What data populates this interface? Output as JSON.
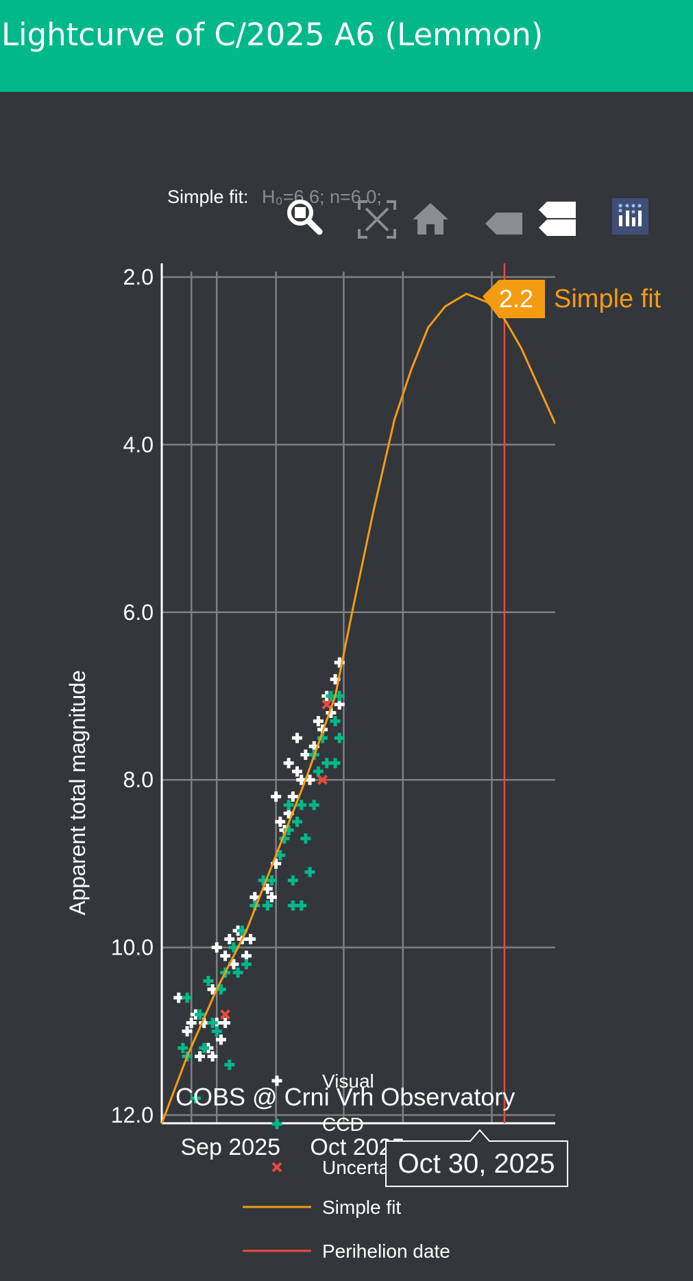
{
  "page": {
    "title": "Lightcurve of C/2025 A6 (Lemmon)"
  },
  "modebar": {
    "fit_label": "Simple fit:",
    "fit_params": "H₀=6.6; n=6.0;",
    "icons": [
      "zoom-icon",
      "autoscale-icon",
      "home-icon",
      "hover-closest-icon",
      "hover-compare-icon",
      "plotly-logo-icon"
    ]
  },
  "colors": {
    "background": "#33363b",
    "header": "#00b88a",
    "visual": "#ffffff",
    "ccd": "#00b88a",
    "uncertain": "#e74c3c",
    "fit": "#f39c12",
    "perihelion": "#e74c3c",
    "grid": "#808080"
  },
  "hover": {
    "fit_value": "2.2",
    "fit_name": "Simple fit",
    "date": "Oct 30, 2025"
  },
  "credit": "COBS @ Crni Vrh Observatory",
  "legend": {
    "visual": "Visual",
    "ccd": "CCD",
    "uncertain": "Uncertain",
    "fit": "Simple fit",
    "perihelion": "Perihelion date"
  },
  "chart_data": {
    "type": "scatter",
    "ylabel": "Apparent total magnitude",
    "y_reversed": true,
    "ylim": [
      12.0,
      2.0
    ],
    "xlim": [
      "2025-08-19",
      "2025-11-20"
    ],
    "x_ticks": [
      "2025-09-01",
      "2025-10-01"
    ],
    "x_tick_labels": [
      "Sep 2025",
      "Oct 2025"
    ],
    "y_ticks": [
      2.0,
      4.0,
      6.0,
      8.0,
      10.0,
      12.0
    ],
    "y_tick_labels": [
      "2.0",
      "4.0",
      "6.0",
      "8.0",
      "10.0",
      "12.0"
    ],
    "grid": true,
    "perihelion_date": "2025-11-08",
    "series": [
      {
        "name": "Visual",
        "marker": "cross",
        "points": [
          [
            "2025-08-23",
            10.6
          ],
          [
            "2025-08-25",
            11.0
          ],
          [
            "2025-08-26",
            10.9
          ],
          [
            "2025-08-27",
            10.8
          ],
          [
            "2025-08-28",
            11.3
          ],
          [
            "2025-08-29",
            10.9
          ],
          [
            "2025-08-30",
            11.2
          ],
          [
            "2025-08-31",
            10.5
          ],
          [
            "2025-08-31",
            11.3
          ],
          [
            "2025-09-01",
            10.0
          ],
          [
            "2025-09-01",
            10.9
          ],
          [
            "2025-09-02",
            11.1
          ],
          [
            "2025-09-03",
            10.9
          ],
          [
            "2025-09-03",
            10.1
          ],
          [
            "2025-09-04",
            9.9
          ],
          [
            "2025-09-05",
            10.2
          ],
          [
            "2025-09-06",
            9.8
          ],
          [
            "2025-09-07",
            9.9
          ],
          [
            "2025-09-08",
            10.1
          ],
          [
            "2025-09-09",
            9.9
          ],
          [
            "2025-09-10",
            9.4
          ],
          [
            "2025-09-13",
            9.3
          ],
          [
            "2025-09-14",
            9.4
          ],
          [
            "2025-09-15",
            9.0
          ],
          [
            "2025-09-15",
            8.2
          ],
          [
            "2025-09-16",
            8.5
          ],
          [
            "2025-09-17",
            8.6
          ],
          [
            "2025-09-18",
            8.4
          ],
          [
            "2025-09-18",
            7.8
          ],
          [
            "2025-09-19",
            8.2
          ],
          [
            "2025-09-20",
            7.5
          ],
          [
            "2025-09-20",
            7.9
          ],
          [
            "2025-09-21",
            8.0
          ],
          [
            "2025-09-22",
            7.7
          ],
          [
            "2025-09-23",
            8.0
          ],
          [
            "2025-09-24",
            7.6
          ],
          [
            "2025-09-25",
            7.3
          ],
          [
            "2025-09-26",
            7.4
          ],
          [
            "2025-09-27",
            7.0
          ],
          [
            "2025-09-28",
            7.2
          ],
          [
            "2025-09-29",
            6.8
          ],
          [
            "2025-09-30",
            6.6
          ],
          [
            "2025-09-30",
            7.1
          ]
        ]
      },
      {
        "name": "CCD",
        "marker": "cross",
        "points": [
          [
            "2025-08-24",
            11.2
          ],
          [
            "2025-08-25",
            10.6
          ],
          [
            "2025-08-25",
            11.3
          ],
          [
            "2025-08-27",
            11.8
          ],
          [
            "2025-08-28",
            10.8
          ],
          [
            "2025-08-29",
            11.2
          ],
          [
            "2025-08-30",
            10.4
          ],
          [
            "2025-08-31",
            10.9
          ],
          [
            "2025-09-01",
            11.0
          ],
          [
            "2025-09-02",
            10.5
          ],
          [
            "2025-09-03",
            10.3
          ],
          [
            "2025-09-04",
            11.4
          ],
          [
            "2025-09-05",
            10.0
          ],
          [
            "2025-09-06",
            10.3
          ],
          [
            "2025-09-07",
            9.8
          ],
          [
            "2025-09-08",
            10.2
          ],
          [
            "2025-09-10",
            9.5
          ],
          [
            "2025-09-12",
            9.2
          ],
          [
            "2025-09-13",
            9.5
          ],
          [
            "2025-09-14",
            9.2
          ],
          [
            "2025-09-16",
            8.9
          ],
          [
            "2025-09-17",
            8.7
          ],
          [
            "2025-09-18",
            8.3
          ],
          [
            "2025-09-18",
            8.6
          ],
          [
            "2025-09-19",
            9.2
          ],
          [
            "2025-09-19",
            9.5
          ],
          [
            "2025-09-20",
            8.5
          ],
          [
            "2025-09-21",
            8.3
          ],
          [
            "2025-09-21",
            9.5
          ],
          [
            "2025-09-22",
            8.7
          ],
          [
            "2025-09-23",
            9.1
          ],
          [
            "2025-09-24",
            8.3
          ],
          [
            "2025-09-24",
            7.7
          ],
          [
            "2025-09-25",
            7.9
          ],
          [
            "2025-09-26",
            7.5
          ],
          [
            "2025-09-27",
            7.8
          ],
          [
            "2025-09-28",
            7.0
          ],
          [
            "2025-09-29",
            7.3
          ],
          [
            "2025-09-29",
            7.8
          ],
          [
            "2025-09-30",
            7.5
          ],
          [
            "2025-09-30",
            7.0
          ]
        ]
      },
      {
        "name": "Uncertain",
        "marker": "x",
        "points": [
          [
            "2025-09-03",
            10.8
          ],
          [
            "2025-09-26",
            8.0
          ],
          [
            "2025-09-27",
            7.1
          ]
        ]
      },
      {
        "name": "Simple fit",
        "type": "line",
        "points": [
          [
            "2025-08-19",
            12.1
          ],
          [
            "2025-08-25",
            11.3
          ],
          [
            "2025-09-01",
            10.5
          ],
          [
            "2025-09-08",
            9.8
          ],
          [
            "2025-09-15",
            8.9
          ],
          [
            "2025-09-22",
            8.0
          ],
          [
            "2025-09-29",
            7.0
          ],
          [
            "2025-10-03",
            6.0
          ],
          [
            "2025-10-08",
            4.8
          ],
          [
            "2025-10-13",
            3.7
          ],
          [
            "2025-10-17",
            3.1
          ],
          [
            "2025-10-21",
            2.6
          ],
          [
            "2025-10-25",
            2.35
          ],
          [
            "2025-10-30",
            2.2
          ],
          [
            "2025-11-04",
            2.3
          ],
          [
            "2025-11-08",
            2.5
          ],
          [
            "2025-11-12",
            2.85
          ],
          [
            "2025-11-16",
            3.3
          ],
          [
            "2025-11-20",
            3.75
          ]
        ]
      }
    ]
  }
}
